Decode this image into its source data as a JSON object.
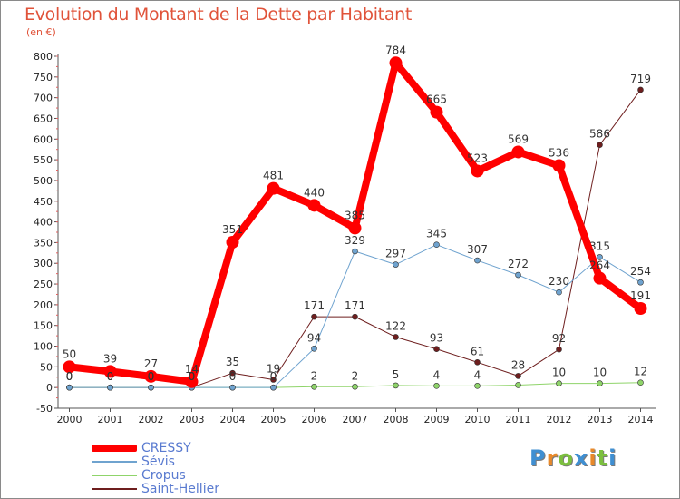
{
  "title": "Evolution du Montant de la Dette par Habitant",
  "unit": "(en €)",
  "logo": {
    "letters": [
      "P",
      "r",
      "o",
      "x",
      "i",
      "t",
      "i"
    ],
    "colors": [
      "#3f8fd2",
      "#e8892a",
      "#7cbf3f",
      "#3f8fd2",
      "#e8892a",
      "#7cbf3f",
      "#3f8fd2"
    ]
  },
  "chart_data": {
    "type": "line",
    "x": [
      "2000",
      "2001",
      "2002",
      "2003",
      "2004",
      "2005",
      "2006",
      "2007",
      "2008",
      "2009",
      "2010",
      "2011",
      "2012",
      "2013",
      "2014"
    ],
    "ylim": [
      -50,
      800
    ],
    "yticks": [
      -50,
      0,
      50,
      100,
      150,
      200,
      250,
      300,
      350,
      400,
      450,
      500,
      550,
      600,
      650,
      700,
      750,
      800
    ],
    "grid": false,
    "legend_position": "bottom-left",
    "series": [
      {
        "name": "Saint-Hellier",
        "color": "#6e1e1e",
        "width": 1,
        "marker": 3,
        "values": [
          0,
          0,
          0,
          0,
          35,
          19,
          171,
          171,
          122,
          93,
          61,
          28,
          92,
          586,
          719
        ],
        "labels": [
          "0",
          "0",
          "0",
          "0",
          "35",
          "19",
          "171",
          "171",
          "122",
          "93",
          "61",
          "28",
          "92",
          "586",
          "719"
        ]
      },
      {
        "name": "Cropus",
        "color": "#8fd46a",
        "width": 1,
        "marker": 3,
        "values": [
          0,
          0,
          0,
          0,
          0,
          0,
          2,
          2,
          5,
          4,
          4,
          6,
          10,
          10,
          12
        ],
        "labels": [
          "",
          "",
          "",
          "",
          "",
          "",
          "2",
          "2",
          "5",
          "4",
          "4",
          "",
          "10",
          "10",
          "12"
        ]
      },
      {
        "name": "Sévis",
        "color": "#6fa3cf",
        "width": 1,
        "marker": 3,
        "values": [
          0,
          0,
          0,
          0,
          0,
          0,
          94,
          329,
          297,
          345,
          307,
          272,
          230,
          315,
          254
        ],
        "labels": [
          "0",
          "0",
          "0",
          "0",
          "0",
          "0",
          "94",
          "329",
          "297",
          "345",
          "307",
          "272",
          "230",
          "315",
          "254"
        ]
      },
      {
        "name": "CRESSY",
        "color": "#ff0000",
        "width": 8,
        "marker": 7,
        "values": [
          50,
          39,
          27,
          14,
          351,
          481,
          440,
          385,
          784,
          665,
          523,
          569,
          536,
          264,
          191
        ],
        "labels": [
          "50",
          "39",
          "27",
          "14",
          "351",
          "481",
          "440",
          "385",
          "784",
          "665",
          "523",
          "569",
          "536",
          "264",
          "191"
        ]
      }
    ],
    "legend": [
      {
        "name": "CRESSY",
        "color": "#ff0000"
      },
      {
        "name": "Sévis",
        "color": "#6fa3cf"
      },
      {
        "name": "Cropus",
        "color": "#8fd46a"
      },
      {
        "name": "Saint-Hellier",
        "color": "#6e1e1e"
      }
    ]
  }
}
